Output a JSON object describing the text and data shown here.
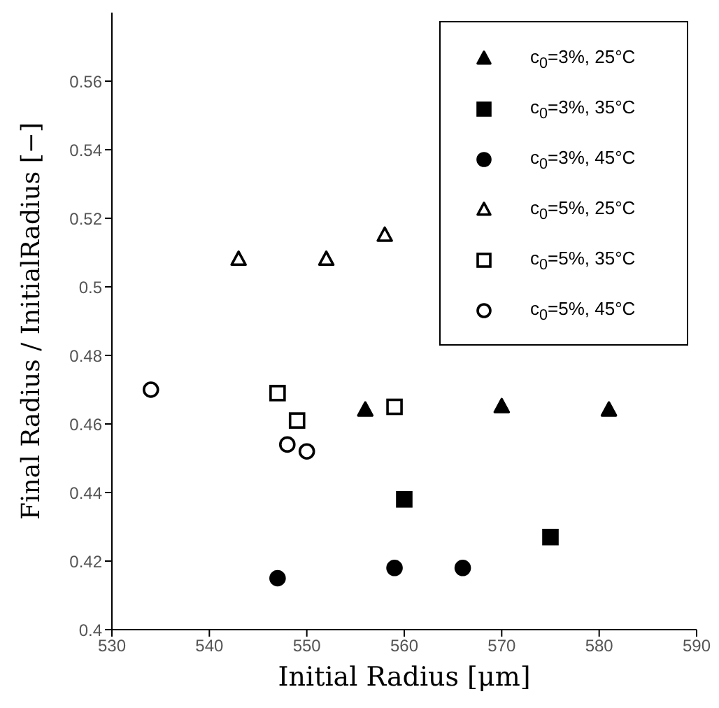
{
  "chart_data": {
    "type": "scatter",
    "xlabel": "Initial Radius [μm]",
    "ylabel": "Final Radius / InitialRadius [−]",
    "xlim": [
      530,
      590
    ],
    "xticks": [
      530,
      540,
      550,
      560,
      570,
      580,
      590
    ],
    "ylim": [
      0.4,
      0.58
    ],
    "yticks": [
      0.4,
      0.42,
      0.44,
      0.46,
      0.48,
      0.5,
      0.52,
      0.54,
      0.56
    ],
    "legend": "top right",
    "grid": false,
    "series": [
      {
        "name": "c$_{0}$=3%, 25°C",
        "color": "#000000",
        "marker": "triangle",
        "x": [
          556,
          570,
          581
        ],
        "values": [
          0.464,
          0.465,
          0.464
        ]
      },
      {
        "name": "c$_{0}$=3%, 35°C",
        "color": "#000000",
        "marker": "square",
        "x": [
          560,
          575
        ],
        "values": [
          0.438,
          0.427
        ]
      },
      {
        "name": "c$_{0}$=3%, 45°C",
        "color": "#000000",
        "marker": "circle",
        "x": [
          547,
          559,
          566
        ],
        "values": [
          0.415,
          0.418,
          0.418
        ]
      },
      {
        "name": "c$_{0}$=5%, 25°C",
        "color": "#000000",
        "marker": "triangle-open",
        "x": [
          543,
          552,
          558
        ],
        "values": [
          0.508,
          0.508,
          0.515
        ]
      },
      {
        "name": "c$_{0}$=5%, 35°C",
        "color": "#000000",
        "marker": "square-open",
        "x": [
          547,
          549,
          559
        ],
        "values": [
          0.469,
          0.461,
          0.465
        ]
      },
      {
        "name": "c$_{0}$=5%, 45°C",
        "color": "#000000",
        "marker": "circle-open",
        "x": [
          534,
          548,
          550
        ],
        "values": [
          0.47,
          0.454,
          0.452
        ]
      }
    ]
  }
}
